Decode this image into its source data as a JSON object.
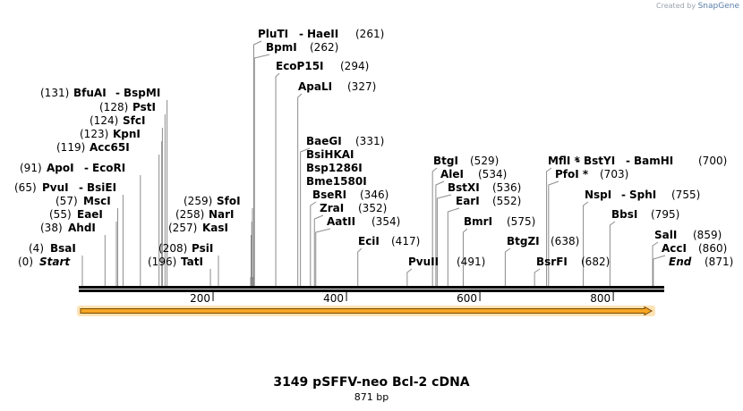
{
  "credit": {
    "prefix": "Created by",
    "brand": "SnapGene"
  },
  "map": {
    "title": "3149 pSFFV-neo Bcl-2 cDNA",
    "length_label": "871 bp",
    "ticks": [
      {
        "pos": 200,
        "label": "200"
      },
      {
        "pos": 400,
        "label": "400"
      },
      {
        "pos": 600,
        "label": "600"
      },
      {
        "pos": 800,
        "label": "800"
      }
    ],
    "features": [
      {
        "pos": 0,
        "pos_label": "(0)",
        "names": [
          "Start"
        ]
      },
      {
        "pos": 4,
        "pos_label": "(4)",
        "names": [
          "BsaI"
        ]
      },
      {
        "pos": 38,
        "pos_label": "(38)",
        "names": [
          "AhdI"
        ]
      },
      {
        "pos": 55,
        "pos_label": "(55)",
        "names": [
          "EaeI"
        ]
      },
      {
        "pos": 57,
        "pos_label": "(57)",
        "names": [
          "MscI"
        ]
      },
      {
        "pos": 65,
        "pos_label": "(65)",
        "names": [
          "PvuI",
          "BsiEI"
        ]
      },
      {
        "pos": 91,
        "pos_label": "(91)",
        "names": [
          "ApoI",
          "EcoRI"
        ]
      },
      {
        "pos": 119,
        "pos_label": "(119)",
        "names": [
          "Acc65I"
        ]
      },
      {
        "pos": 123,
        "pos_label": "(123)",
        "names": [
          "KpnI"
        ]
      },
      {
        "pos": 124,
        "pos_label": "(124)",
        "names": [
          "SfcI"
        ]
      },
      {
        "pos": 128,
        "pos_label": "(128)",
        "names": [
          "PstI"
        ]
      },
      {
        "pos": 131,
        "pos_label": "(131)",
        "names": [
          "BfuAI",
          "BspMI"
        ]
      },
      {
        "pos": 196,
        "pos_label": "(196)",
        "names": [
          "TatI"
        ]
      },
      {
        "pos": 208,
        "pos_label": "(208)",
        "names": [
          "PsiI"
        ]
      },
      {
        "pos": 257,
        "pos_label": "(257)",
        "names": [
          "KasI"
        ]
      },
      {
        "pos": 258,
        "pos_label": "(258)",
        "names": [
          "NarI"
        ]
      },
      {
        "pos": 259,
        "pos_label": "(259)",
        "names": [
          "SfoI"
        ]
      },
      {
        "pos": 261,
        "pos_label": "(261)",
        "names": [
          "PluTI",
          "HaeII"
        ]
      },
      {
        "pos": 262,
        "pos_label": "(262)",
        "names": [
          "BpmI"
        ]
      },
      {
        "pos": 294,
        "pos_label": "(294)",
        "names": [
          "EcoP15I"
        ]
      },
      {
        "pos": 327,
        "pos_label": "(327)",
        "names": [
          "ApaLI"
        ]
      },
      {
        "pos": 331,
        "pos_label": "(331)",
        "names": [
          "BaeGI",
          "BsiHKAI",
          "Bsp1286I",
          "Bme1580I"
        ]
      },
      {
        "pos": 346,
        "pos_label": "(346)",
        "names": [
          "BseRI"
        ]
      },
      {
        "pos": 352,
        "pos_label": "(352)",
        "names": [
          "ZraI"
        ]
      },
      {
        "pos": 354,
        "pos_label": "(354)",
        "names": [
          "AatII"
        ]
      },
      {
        "pos": 417,
        "pos_label": "(417)",
        "names": [
          "EciI"
        ]
      },
      {
        "pos": 491,
        "pos_label": "(491)",
        "names": [
          "PvuII"
        ]
      },
      {
        "pos": 529,
        "pos_label": "(529)",
        "names": [
          "BtgI"
        ]
      },
      {
        "pos": 534,
        "pos_label": "(534)",
        "names": [
          "AleI"
        ]
      },
      {
        "pos": 536,
        "pos_label": "(536)",
        "names": [
          "BstXI"
        ]
      },
      {
        "pos": 552,
        "pos_label": "(552)",
        "names": [
          "EarI"
        ]
      },
      {
        "pos": 575,
        "pos_label": "(575)",
        "names": [
          "BmrI"
        ]
      },
      {
        "pos": 638,
        "pos_label": "(638)",
        "names": [
          "BtgZI"
        ]
      },
      {
        "pos": 682,
        "pos_label": "(682)",
        "names": [
          "BsrFI"
        ]
      },
      {
        "pos": 700,
        "pos_label": "(700)",
        "names": [
          "MflI *",
          "BstYI",
          "BamHI"
        ]
      },
      {
        "pos": 703,
        "pos_label": "(703)",
        "names": [
          "PfoI *"
        ]
      },
      {
        "pos": 755,
        "pos_label": "(755)",
        "names": [
          "NspI",
          "SphI"
        ]
      },
      {
        "pos": 795,
        "pos_label": "(795)",
        "names": [
          "BbsI"
        ]
      },
      {
        "pos": 859,
        "pos_label": "(859)",
        "names": [
          "SalI"
        ]
      },
      {
        "pos": 860,
        "pos_label": "(860)",
        "names": [
          "AccI"
        ]
      },
      {
        "pos": 871,
        "pos_label": "(871)",
        "names": [
          "End"
        ]
      }
    ]
  },
  "colors": {
    "arrow_fill": "#f5a623",
    "arrow_stroke": "#7a4a00",
    "glow": "#fde3b4",
    "backbone": "#000000",
    "leader": "#8c8c8c"
  }
}
